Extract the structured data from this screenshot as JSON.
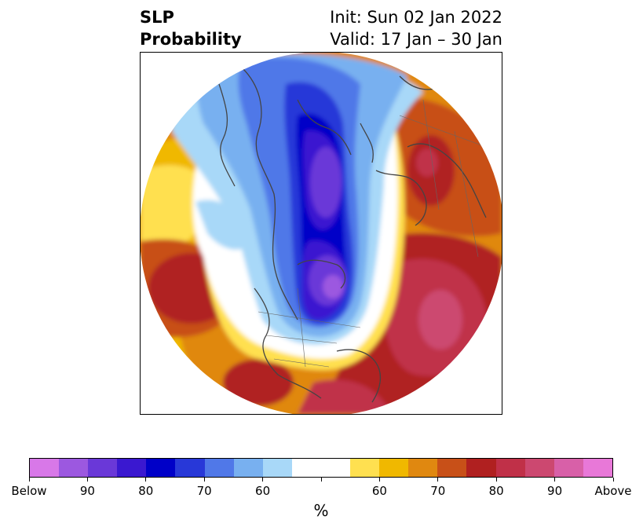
{
  "header": {
    "title_line1": "SLP",
    "title_line2": "Probability",
    "init_text": "Init: Sun 02 Jan 2022",
    "valid_text": "Valid: 17 Jan – 30 Jan"
  },
  "colorbar": {
    "colors": [
      "#d878e8",
      "#9c58e0",
      "#6a38d8",
      "#3a18d0",
      "#0000c8",
      "#2838d8",
      "#5078e8",
      "#78b0f0",
      "#a8d8f8",
      "#ffffff",
      "#ffffff",
      "#ffe050",
      "#f0b800",
      "#e08810",
      "#c85018",
      "#b02020",
      "#c03048",
      "#cc4870",
      "#d860a8",
      "#e878d8"
    ],
    "tick_labels": [
      "Below",
      "90",
      "80",
      "70",
      "60",
      "",
      "60",
      "70",
      "80",
      "90",
      "Above"
    ],
    "unit": "%"
  },
  "map": {
    "projection": "north-polar-stereographic",
    "field": "sea-level-pressure-probability"
  }
}
